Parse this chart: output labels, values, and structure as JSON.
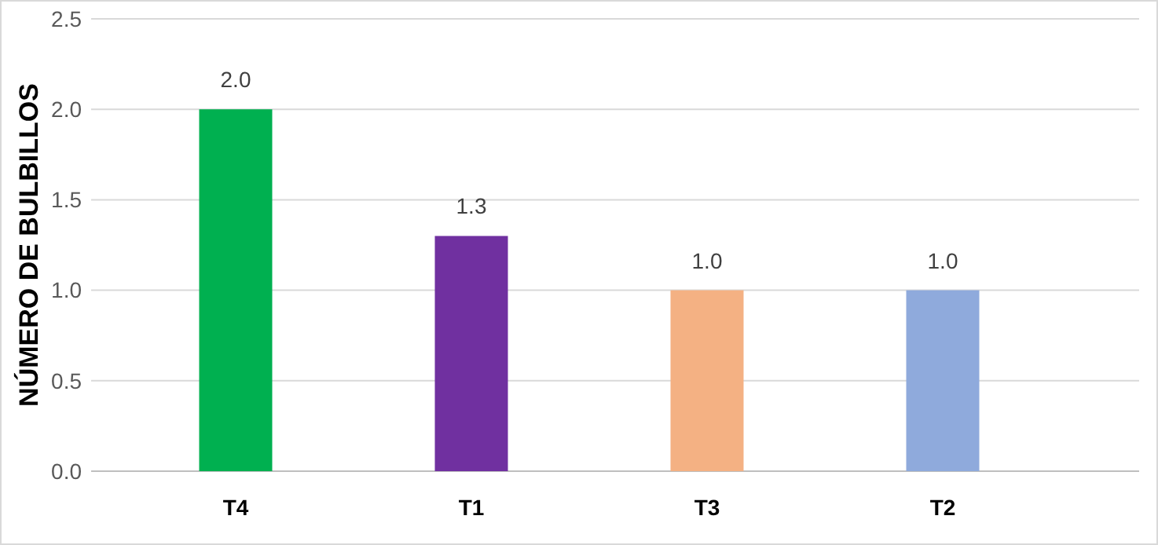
{
  "chart_data": {
    "type": "bar",
    "ylabel": "NÚMERO DE BULBILLOS",
    "categories": [
      "T4",
      "T1",
      "T3",
      "T2"
    ],
    "values": [
      2.0,
      1.3,
      1.0,
      1.0
    ],
    "colors": [
      "#00b050",
      "#7030a0",
      "#f4b183",
      "#8faadc"
    ],
    "ylim": [
      0,
      2.5
    ],
    "yticks": [
      {
        "value": 0,
        "label": "0.0"
      },
      {
        "value": 0.5,
        "label": "0.5"
      },
      {
        "value": 1,
        "label": "1.0"
      },
      {
        "value": 1.5,
        "label": "1.5"
      },
      {
        "value": 2,
        "label": "2.0"
      },
      {
        "value": 2.5,
        "label": "2.5"
      }
    ],
    "value_labels": [
      "2.0",
      "1.3",
      "1.0",
      "1.0"
    ],
    "grid": "y"
  }
}
